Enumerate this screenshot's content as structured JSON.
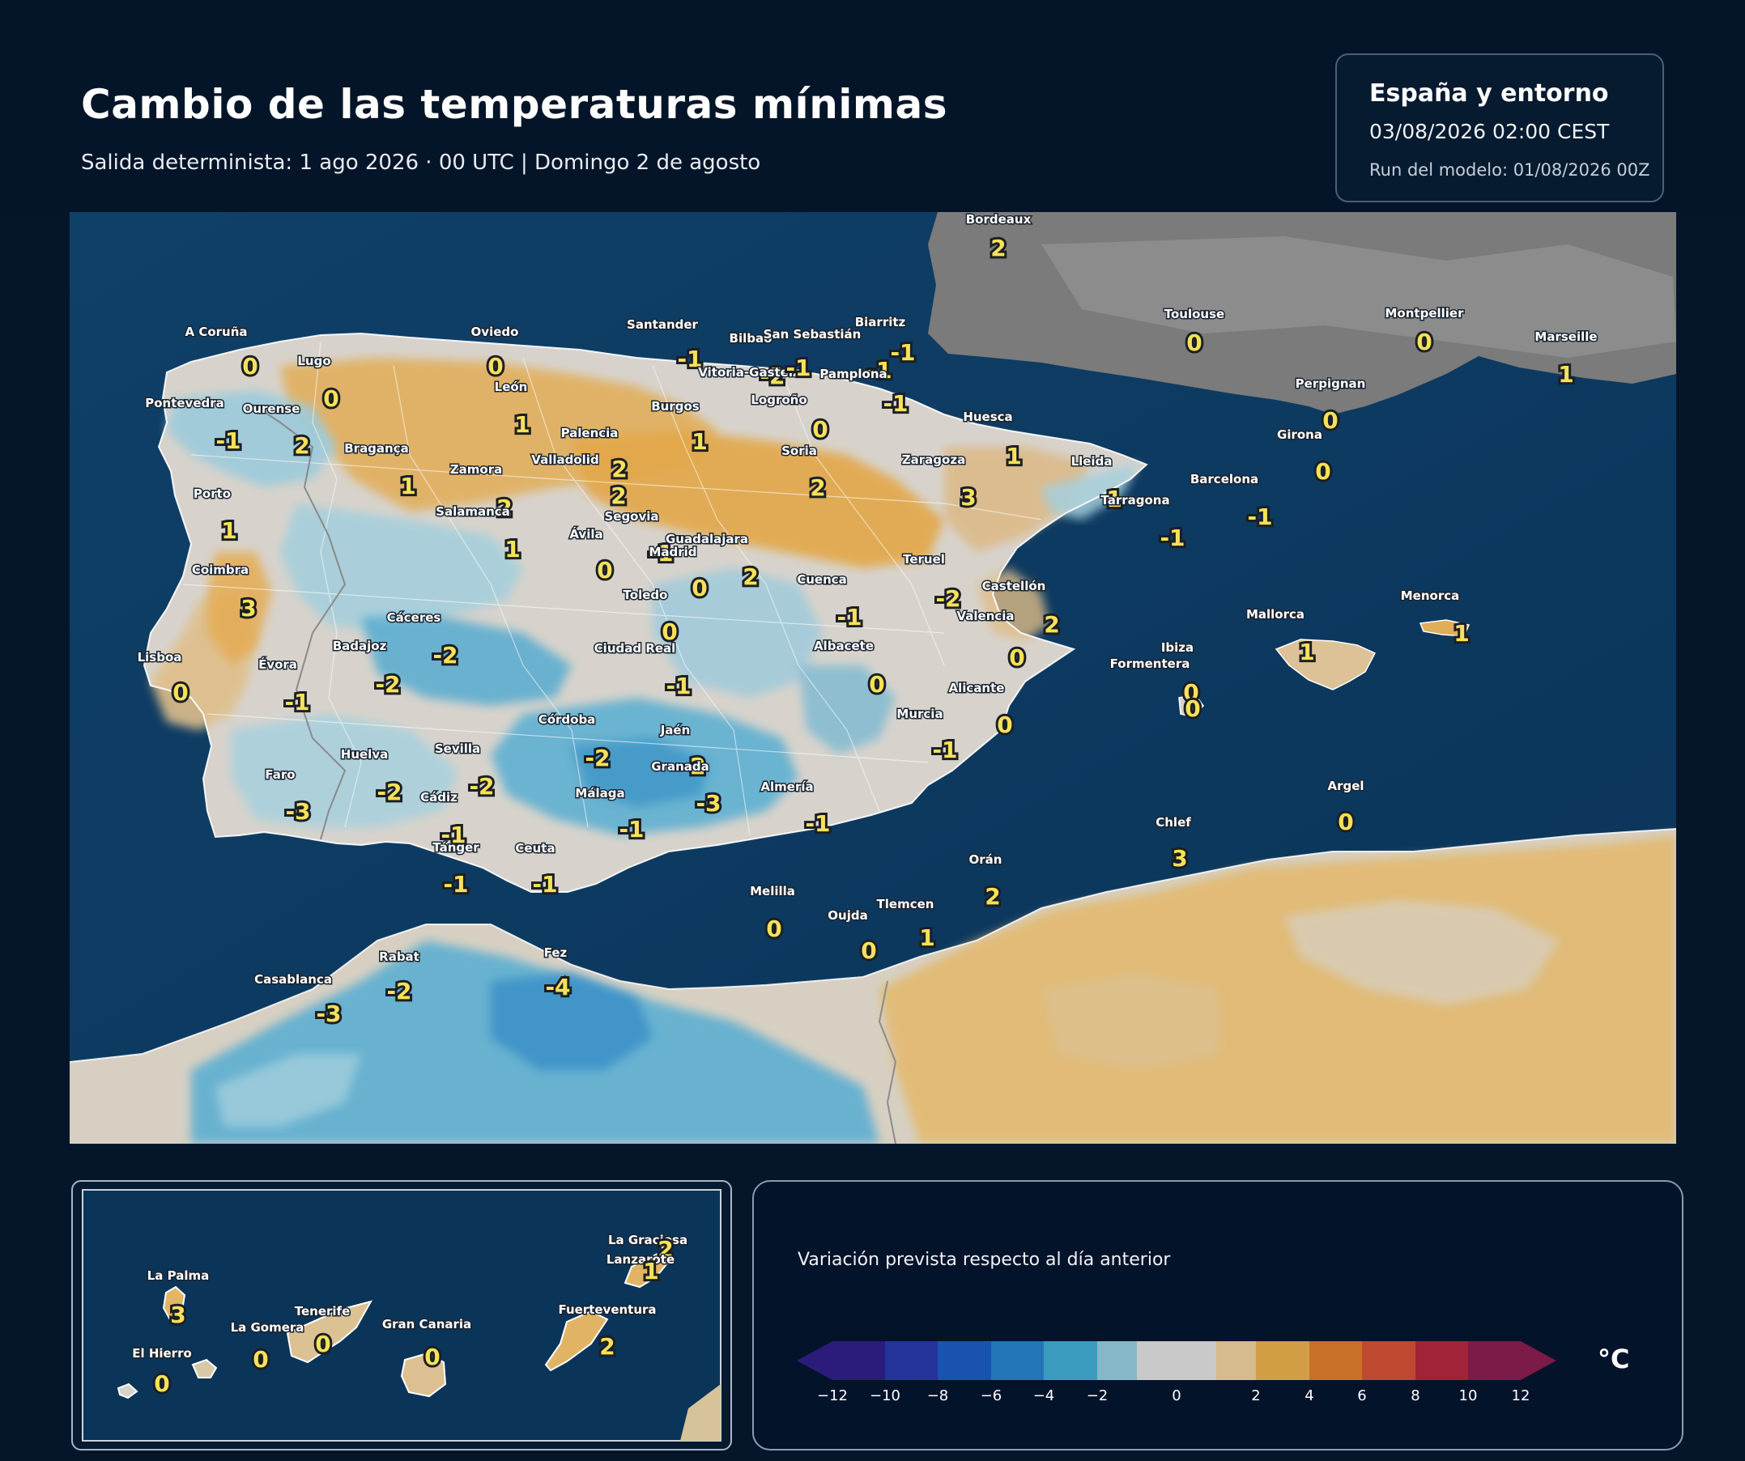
{
  "header": {
    "title": "Cambio de las temperaturas mínimas",
    "subtitle": "Salida determinista: 1 ago 2026 · 00 UTC  |  Domingo 2 de agosto",
    "info_region": "España y entorno",
    "info_valid": "03/08/2026  02:00 CEST",
    "info_run": "Run del modelo: 01/08/2026 00Z"
  },
  "colors": {
    "sea": "#0d3d66",
    "france_land": "#7a7a7a",
    "neutral": "#d8d5cf",
    "warm_light": "#dcc295",
    "warm_mid": "#e3a94d",
    "cool_light": "#9ccadb",
    "cool_mid": "#4ea8cf",
    "cool_deep": "#2c7fc4",
    "label_value": "#f7e15a"
  },
  "stations": [
    {
      "name": "Bordeaux",
      "value": "2"
    },
    {
      "name": "Toulouse",
      "value": "0"
    },
    {
      "name": "Montpellier",
      "value": "0"
    },
    {
      "name": "Marseille",
      "value": "1"
    },
    {
      "name": "Perpignan",
      "value": "0"
    },
    {
      "name": "A Coruña",
      "value": "0"
    },
    {
      "name": "Lugo",
      "value": "0"
    },
    {
      "name": "Oviedo",
      "value": "0"
    },
    {
      "name": "Santander",
      "value": "-1"
    },
    {
      "name": "Bilbao",
      "value": "-2"
    },
    {
      "name": "San Sebastián",
      "value": "-1"
    },
    {
      "name": "Biarritz",
      "value": "-1"
    },
    {
      "name": "Vitoria-Gasteiz",
      "value": "-1"
    },
    {
      "name": "Pamplona",
      "value": "-1"
    },
    {
      "name": "Logroño",
      "value": "0"
    },
    {
      "name": "Pontevedra",
      "value": "-1"
    },
    {
      "name": "Ourense",
      "value": "2"
    },
    {
      "name": "León",
      "value": "1"
    },
    {
      "name": "Burgos",
      "value": "1"
    },
    {
      "name": "Palencia",
      "value": "2"
    },
    {
      "name": "Huesca",
      "value": "1"
    },
    {
      "name": "Girona",
      "value": "0"
    },
    {
      "name": "Bragança",
      "value": "1"
    },
    {
      "name": "Valladolid",
      "value": "2"
    },
    {
      "name": "Soria",
      "value": "2"
    },
    {
      "name": "Zaragoza",
      "value": "3"
    },
    {
      "name": "Lleida",
      "value": "1"
    },
    {
      "name": "Zamora",
      "value": "2"
    },
    {
      "name": "Barcelona",
      "value": "-1"
    },
    {
      "name": "Porto",
      "value": "1"
    },
    {
      "name": "Tarragona",
      "value": "-1"
    },
    {
      "name": "Salamanca",
      "value": "1"
    },
    {
      "name": "Segovia",
      "value": "-1"
    },
    {
      "name": "Ávila",
      "value": "0"
    },
    {
      "name": "Guadalajara",
      "value": "2"
    },
    {
      "name": "Madrid",
      "value": "0"
    },
    {
      "name": "Teruel",
      "value": "-2"
    },
    {
      "name": "Coimbra",
      "value": "3"
    },
    {
      "name": "Cuenca",
      "value": "-1"
    },
    {
      "name": "Toledo",
      "value": "0"
    },
    {
      "name": "Castellón",
      "value": "2"
    },
    {
      "name": "Menorca",
      "value": "1"
    },
    {
      "name": "Cáceres",
      "value": "-2"
    },
    {
      "name": "Valencia",
      "value": "0"
    },
    {
      "name": "Mallorca",
      "value": "1"
    },
    {
      "name": "Badajoz",
      "value": "-2"
    },
    {
      "name": "Ciudad Real",
      "value": "-1"
    },
    {
      "name": "Albacete",
      "value": "0"
    },
    {
      "name": "Ibiza",
      "value": "0"
    },
    {
      "name": "Lisboa",
      "value": "0"
    },
    {
      "name": "Évora",
      "value": "-1"
    },
    {
      "name": "Formentera",
      "value": "0"
    },
    {
      "name": "Alicante",
      "value": "0"
    },
    {
      "name": "Murcia",
      "value": "-1"
    },
    {
      "name": "Córdoba",
      "value": "-2"
    },
    {
      "name": "Jaén",
      "value": "-2"
    },
    {
      "name": "Sevilla",
      "value": "-2"
    },
    {
      "name": "Huelva",
      "value": "-2"
    },
    {
      "name": "Granada",
      "value": "-3"
    },
    {
      "name": "Faro",
      "value": "-3"
    },
    {
      "name": "Almería",
      "value": "-1"
    },
    {
      "name": "Málaga",
      "value": "-1"
    },
    {
      "name": "Cádiz",
      "value": "-1"
    },
    {
      "name": "Argel",
      "value": "0"
    },
    {
      "name": "Chlef",
      "value": "3"
    },
    {
      "name": "Tánger",
      "value": "-1"
    },
    {
      "name": "Ceuta",
      "value": "-1"
    },
    {
      "name": "Orán",
      "value": "2"
    },
    {
      "name": "Melilla",
      "value": "0"
    },
    {
      "name": "Tlemcen",
      "value": "1"
    },
    {
      "name": "Oujda",
      "value": "0"
    },
    {
      "name": "Rabat",
      "value": "-2"
    },
    {
      "name": "Fez",
      "value": "-4"
    },
    {
      "name": "Casablanca",
      "value": "-3"
    }
  ],
  "inset": {
    "stations": [
      {
        "name": "La Graciosa",
        "value": "2"
      },
      {
        "name": "Lanzarote",
        "value": "1"
      },
      {
        "name": "La Palma",
        "value": "3"
      },
      {
        "name": "Tenerife",
        "value": "0"
      },
      {
        "name": "Fuerteventura",
        "value": "2"
      },
      {
        "name": "La Gomera",
        "value": "0"
      },
      {
        "name": "Gran Canaria",
        "value": "0"
      },
      {
        "name": "El Hierro",
        "value": "0"
      }
    ]
  },
  "legend": {
    "title": "Variación prevista respecto al día anterior",
    "unit": "°C",
    "ticks": [
      "−12",
      "−10",
      "−8",
      "−6",
      "−4",
      "−2",
      "0",
      "2",
      "4",
      "6",
      "8",
      "10",
      "12"
    ],
    "bins": [
      {
        "from": -12,
        "to": -10,
        "color": "#2b1b7a"
      },
      {
        "from": -10,
        "to": -8,
        "color": "#24349a"
      },
      {
        "from": -8,
        "to": -6,
        "color": "#1a52b0"
      },
      {
        "from": -6,
        "to": -4,
        "color": "#2276b8"
      },
      {
        "from": -4,
        "to": -2,
        "color": "#3a9bbf"
      },
      {
        "from": -2,
        "to": -1,
        "color": "#86b8c9"
      },
      {
        "from": -1,
        "to": 1,
        "color": "#c9c9c9"
      },
      {
        "from": 1,
        "to": 2,
        "color": "#d4bc8c"
      },
      {
        "from": 2,
        "to": 4,
        "color": "#d19e46"
      },
      {
        "from": 4,
        "to": 6,
        "color": "#c87028"
      },
      {
        "from": 6,
        "to": 8,
        "color": "#bd4a30"
      },
      {
        "from": 8,
        "to": 10,
        "color": "#a02338"
      },
      {
        "from": 10,
        "to": 12,
        "color": "#7c1a48"
      }
    ],
    "under_color": "#2b1b7a",
    "over_color": "#7c1a48"
  }
}
